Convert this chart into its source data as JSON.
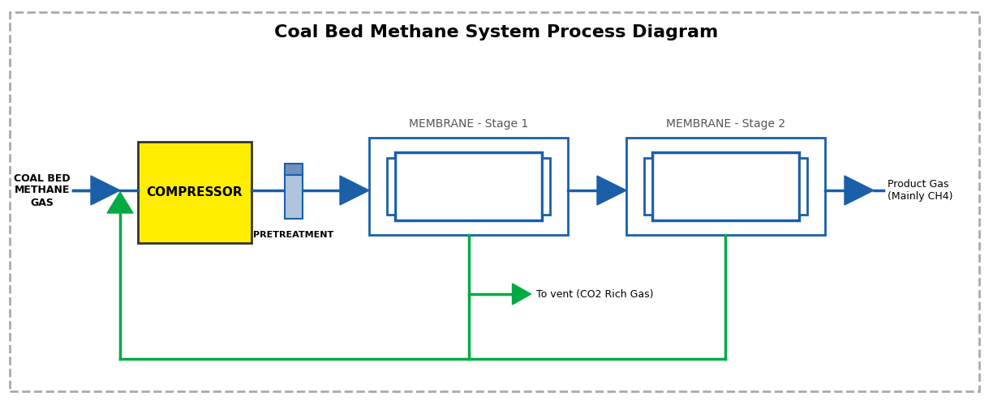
{
  "title": "Coal Bed Methane System Process Diagram",
  "title_fontsize": 16,
  "bg_color": "#ffffff",
  "border_color": "#aaaaaa",
  "blue_color": "#1a5fa8",
  "green_color": "#00aa44",
  "yellow_color": "#ffee00",
  "yellow_border": "#333333",
  "label_input": "COAL BED\nMETHANE\nGAS",
  "label_compressor": "COMPRESSOR",
  "label_pretreatment": "PRETREATMENT",
  "label_membrane1": "MEMBRANE - Stage 1",
  "label_membrane2": "MEMBRANE - Stage 2",
  "label_output": "Product Gas\n(Mainly CH4)",
  "label_vent": "To vent (CO2 Rich Gas)"
}
